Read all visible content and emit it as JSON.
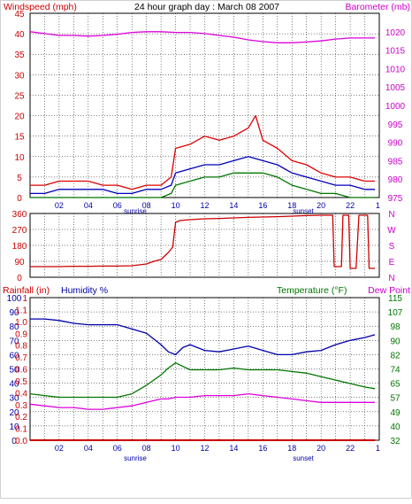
{
  "title": "24 hour graph day : March 08 2007",
  "panels": {
    "wind": {
      "left_label": "Windspeed (mph)",
      "right_label": "Barometer (mb)",
      "left_ticks": [
        "0",
        "5",
        "10",
        "15",
        "20",
        "25",
        "30",
        "35",
        "40",
        "45"
      ],
      "right_ticks": [
        "975",
        "980",
        "985",
        "990",
        "995",
        "1000",
        "1005",
        "1010",
        "1015",
        "1020"
      ]
    },
    "direction": {
      "left_ticks": [
        "0",
        "90",
        "180",
        "270",
        "360"
      ],
      "right_ticks": [
        "N",
        "W",
        "S",
        "E",
        "N"
      ]
    },
    "bottom": {
      "rain_label": "Rainfall (in)",
      "humidity_label": "Humidity %",
      "temp_label": "Temperature (°F)",
      "dew_label": "Dew Point",
      "humidity_ticks": [
        "0",
        "10",
        "20",
        "30",
        "40",
        "50",
        "60",
        "70",
        "80",
        "90",
        "100"
      ],
      "rain_ticks": [
        "0.0",
        "0.1",
        "0.2",
        "0.3",
        "0.4",
        "0.5",
        "0.6",
        "0.7",
        "0.8",
        "0.9",
        "1.0",
        "1.1",
        "1"
      ],
      "temp_ticks": [
        "32",
        "40",
        "49",
        "57",
        "65",
        "74",
        "82",
        "90",
        "98",
        "107",
        "115"
      ]
    },
    "time_ticks": [
      "02",
      "04",
      "06",
      "08",
      "10",
      "12",
      "14",
      "16",
      "18",
      "20",
      "22",
      "1"
    ],
    "sunrise_label": "sunrise",
    "sunset_label": "sunset"
  },
  "colors": {
    "wind_speed": "#dd0000",
    "wind_avg": "#0000bb",
    "wind_low": "#007700",
    "barometer": "#dd00dd",
    "direction": "#cc0000",
    "rain": "#cc0000",
    "humidity": "#0000aa",
    "temperature": "#007700",
    "dew_point": "#dd00dd",
    "grid": "#000000",
    "title_text": "#000000",
    "left_axis": "#cc0000",
    "right_axis_top": "#cc00cc",
    "right_axis_bottom": "#007700"
  },
  "chart_data": [
    {
      "type": "line",
      "x_unit": "hour",
      "xlim": [
        0,
        24
      ],
      "ylim": [
        0,
        45
      ],
      "y2lim": [
        975,
        1025
      ],
      "grid": true,
      "series": [
        {
          "axis": "left",
          "x": [
            0,
            1,
            2,
            3,
            4,
            5,
            6,
            7,
            8,
            9,
            9.7,
            10,
            11,
            12,
            13,
            14,
            15,
            15.5,
            16,
            17,
            18,
            19,
            20,
            21,
            22,
            23,
            23.7
          ],
          "values": [
            3,
            3,
            4,
            4,
            4,
            3,
            3,
            2,
            3,
            3,
            5,
            12,
            13,
            15,
            14,
            15,
            17,
            20,
            14,
            12,
            9,
            8,
            6,
            5,
            5,
            4,
            4
          ]
        },
        {
          "axis": "left",
          "x": [
            0,
            1,
            2,
            3,
            4,
            5,
            6,
            7,
            8,
            9,
            9.7,
            10,
            11,
            12,
            13,
            14,
            15,
            16,
            17,
            18,
            19,
            20,
            21,
            22,
            23,
            23.7
          ],
          "values": [
            1,
            1,
            2,
            2,
            2,
            2,
            1,
            1,
            2,
            2,
            3,
            6,
            7,
            8,
            8,
            9,
            10,
            9,
            8,
            6,
            5,
            4,
            3,
            3,
            2,
            2
          ]
        },
        {
          "axis": "left",
          "x": [
            0,
            1,
            2,
            3,
            4,
            5,
            6,
            7,
            8,
            9,
            9.7,
            10,
            11,
            12,
            13,
            14,
            15,
            16,
            17,
            18,
            19,
            20,
            21,
            22,
            23,
            23.7
          ],
          "values": [
            0,
            0,
            0,
            0,
            0,
            0,
            0,
            0,
            0,
            0,
            1,
            3,
            4,
            5,
            5,
            6,
            6,
            6,
            5,
            3,
            2,
            1,
            1,
            0,
            0,
            0
          ]
        },
        {
          "axis": "right",
          "x": [
            0,
            1,
            2,
            3,
            4,
            5,
            6,
            7,
            8,
            9,
            10,
            11,
            12,
            13,
            14,
            15,
            16,
            17,
            18,
            19,
            20,
            21,
            22,
            23,
            23.7
          ],
          "values": [
            1020,
            1019.5,
            1019,
            1019,
            1018.8,
            1019,
            1019.3,
            1019.8,
            1020,
            1020,
            1019.8,
            1019.8,
            1019.5,
            1019,
            1018.5,
            1017.8,
            1017.3,
            1017,
            1017,
            1017.2,
            1017.5,
            1018,
            1018.3,
            1018.3,
            1018.3
          ]
        }
      ]
    },
    {
      "type": "line",
      "x_unit": "hour",
      "xlim": [
        0,
        24
      ],
      "ylim": [
        0,
        360
      ],
      "grid": true,
      "series": [
        {
          "x": [
            0,
            1,
            2,
            3,
            4,
            5,
            6,
            7,
            8,
            8.5,
            9,
            9.5,
            9.8,
            10,
            10.3,
            11,
            12,
            13,
            14,
            15,
            16,
            17,
            18,
            19,
            20,
            20.8,
            20.9,
            21.4,
            21.5,
            21.9,
            22,
            22.4,
            22.6,
            23.2,
            23.3,
            23.7
          ],
          "values": [
            60,
            60,
            60,
            62,
            62,
            63,
            63,
            65,
            75,
            90,
            100,
            140,
            170,
            310,
            320,
            325,
            330,
            332,
            335,
            338,
            340,
            342,
            345,
            348,
            350,
            350,
            60,
            60,
            350,
            350,
            50,
            50,
            350,
            350,
            50,
            50
          ]
        }
      ]
    },
    {
      "type": "line",
      "x_unit": "hour",
      "xlim": [
        0,
        24
      ],
      "ylim": [
        0,
        100
      ],
      "y2lim": [
        32,
        115
      ],
      "grid": true,
      "series": [
        {
          "axis": "left",
          "x": [
            0,
            1,
            2,
            3,
            4,
            5,
            6,
            7,
            8,
            9,
            9.5,
            10,
            10.5,
            11,
            12,
            13,
            14,
            15,
            16,
            17,
            18,
            19,
            20,
            21,
            22,
            23,
            23.7
          ],
          "values": [
            85,
            85,
            84,
            82,
            81,
            81,
            81,
            78,
            75,
            67,
            62,
            60,
            65,
            67,
            63,
            62,
            64,
            66,
            63,
            60,
            60,
            62,
            63,
            67,
            70,
            72,
            74
          ]
        },
        {
          "axis": "right",
          "x": [
            0,
            1,
            2,
            3,
            4,
            5,
            6,
            7,
            8,
            9,
            9.5,
            10,
            10.5,
            11,
            12,
            13,
            14,
            15,
            16,
            17,
            18,
            19,
            20,
            21,
            22,
            23,
            23.7
          ],
          "values": [
            59,
            58,
            57,
            57,
            57,
            57,
            57,
            59,
            64,
            70,
            74,
            77,
            75,
            73,
            73,
            73,
            74,
            73,
            73,
            73,
            72,
            71,
            69,
            67,
            65,
            63,
            62
          ]
        },
        {
          "axis": "right",
          "x": [
            0,
            1,
            2,
            3,
            4,
            5,
            6,
            7,
            8,
            9,
            9.5,
            10,
            10.5,
            11,
            12,
            13,
            14,
            15,
            16,
            17,
            18,
            19,
            20,
            21,
            22,
            23,
            23.7
          ],
          "values": [
            53,
            52,
            51,
            51,
            50,
            50,
            51,
            52,
            54,
            56,
            56,
            57,
            57,
            57,
            58,
            58,
            58,
            59,
            58,
            57,
            56,
            55,
            54,
            54,
            54,
            54,
            54
          ]
        },
        {
          "axis": "rain",
          "x": [
            0,
            23.7
          ],
          "values": [
            0,
            0
          ]
        }
      ]
    }
  ]
}
